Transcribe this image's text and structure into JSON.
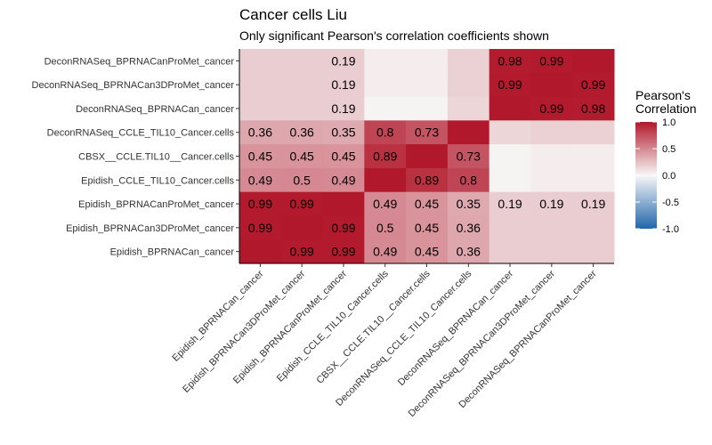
{
  "chart_data": {
    "type": "heatmap",
    "title": "Cancer cells Liu",
    "subtitle": "Only significant Pearson's correlation coefficients shown",
    "x_categories": [
      "Epidish_BPRNACan_cancer",
      "Epidish_BPRNACan3DProMet_cancer",
      "Epidish_BPRNACanProMet_cancer",
      "Epidish_CCLE_TIL10_Cancer.cells",
      "CBSX__CCLE.TIL10__Cancer.cells",
      "DeconRNASeq_CCLE_TIL10_Cancer.cells",
      "DeconRNASeq_BPRNACan_cancer",
      "DeconRNASeq_BPRNACan3DProMet_cancer",
      "DeconRNASeq_BPRNACanProMet_cancer"
    ],
    "y_categories": [
      "DeconRNASeq_BPRNACanProMet_cancer",
      "DeconRNASeq_BPRNACan3DProMet_cancer",
      "DeconRNASeq_BPRNACan_cancer",
      "DeconRNASeq_CCLE_TIL10_Cancer.cells",
      "CBSX__CCLE.TIL10__Cancer.cells",
      "Epidish_CCLE_TIL10_Cancer.cells",
      "Epidish_BPRNACanProMet_cancer",
      "Epidish_BPRNACan3DProMet_cancer",
      "Epidish_BPRNACan_cancer"
    ],
    "values": [
      [
        0.19,
        0.19,
        0.19,
        0.05,
        0.05,
        0.17,
        0.98,
        0.99,
        1.0
      ],
      [
        0.19,
        0.19,
        0.19,
        0.05,
        0.05,
        0.17,
        0.99,
        1.0,
        0.99
      ],
      [
        0.19,
        0.19,
        0.19,
        0.02,
        0.02,
        0.15,
        1.0,
        0.99,
        0.98
      ],
      [
        0.36,
        0.36,
        0.35,
        0.8,
        0.73,
        1.0,
        0.15,
        0.17,
        0.17
      ],
      [
        0.45,
        0.45,
        0.45,
        0.89,
        1.0,
        0.73,
        0.02,
        0.05,
        0.05
      ],
      [
        0.49,
        0.5,
        0.49,
        1.0,
        0.89,
        0.8,
        0.02,
        0.05,
        0.05
      ],
      [
        0.99,
        0.99,
        1.0,
        0.49,
        0.45,
        0.35,
        0.19,
        0.19,
        0.19
      ],
      [
        0.99,
        1.0,
        0.99,
        0.5,
        0.45,
        0.36,
        0.19,
        0.19,
        0.19
      ],
      [
        1.0,
        0.99,
        0.99,
        0.49,
        0.45,
        0.36,
        0.19,
        0.19,
        0.19
      ]
    ],
    "labels": [
      [
        "",
        "",
        "0.19",
        "",
        "",
        "",
        "0.98",
        "0.99",
        ""
      ],
      [
        "",
        "",
        "0.19",
        "",
        "",
        "",
        "0.99",
        "",
        "0.99"
      ],
      [
        "",
        "",
        "0.19",
        "",
        "",
        "",
        "",
        "0.99",
        "0.98"
      ],
      [
        "0.36",
        "0.36",
        "0.35",
        "0.8",
        "0.73",
        "",
        "",
        "",
        ""
      ],
      [
        "0.45",
        "0.45",
        "0.45",
        "0.89",
        "",
        "0.73",
        "",
        "",
        ""
      ],
      [
        "0.49",
        "0.5",
        "0.49",
        "",
        "0.89",
        "0.8",
        "",
        "",
        ""
      ],
      [
        "0.99",
        "0.99",
        "",
        "0.49",
        "0.45",
        "0.35",
        "0.19",
        "0.19",
        "0.19"
      ],
      [
        "0.99",
        "",
        "0.99",
        "0.5",
        "0.45",
        "0.36",
        "",
        "",
        ""
      ],
      [
        "",
        "0.99",
        "0.99",
        "0.49",
        "0.45",
        "0.36",
        "",
        "",
        ""
      ]
    ],
    "legend": {
      "title_lines": [
        "Pearson's",
        "Correlation"
      ],
      "ticks": [
        "1.0",
        "0.5",
        "0.0",
        "-0.5",
        "-1.0"
      ],
      "tick_values": [
        1.0,
        0.5,
        0.0,
        -0.5,
        -1.0
      ],
      "range": [
        -1,
        1
      ],
      "colors": {
        "low": "#2166ac",
        "mid": "#f7f7f7",
        "high": "#b2182b"
      }
    }
  }
}
